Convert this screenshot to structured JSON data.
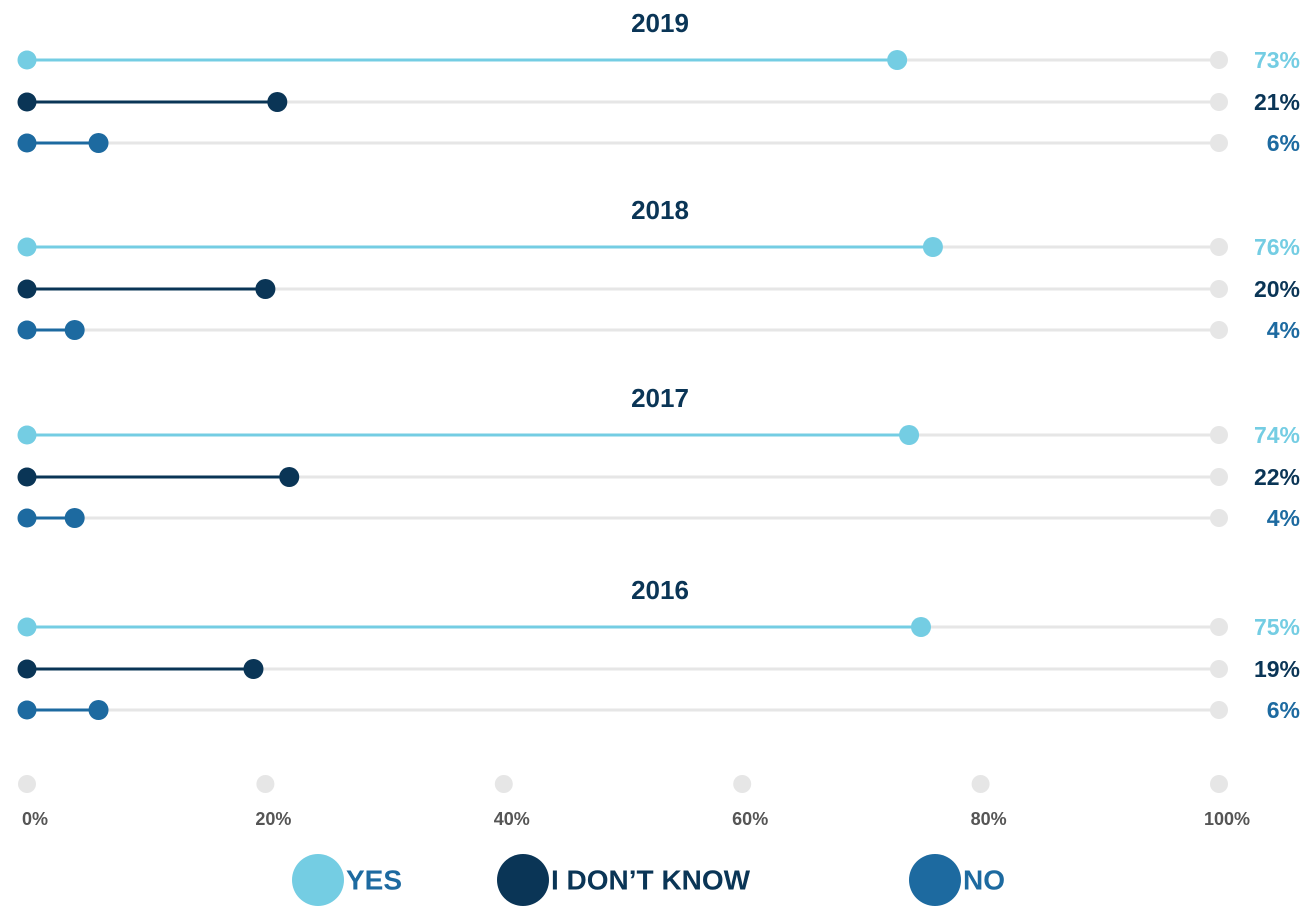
{
  "chart_data": {
    "type": "lollipop",
    "categories": [
      "2019",
      "2018",
      "2017",
      "2016"
    ],
    "series": [
      {
        "name": "YES",
        "color": "#74cde3",
        "values": [
          73,
          76,
          74,
          75
        ],
        "value_labels": [
          "73%",
          "76%",
          "74%",
          "75%"
        ]
      },
      {
        "name": "I DON’T KNOW",
        "color": "#0a3556",
        "values": [
          21,
          20,
          22,
          19
        ],
        "value_labels": [
          "21%",
          "20%",
          "22%",
          "19%"
        ]
      },
      {
        "name": "NO",
        "color": "#1d6aa0",
        "values": [
          6,
          4,
          4,
          6
        ],
        "value_labels": [
          "6%",
          "4%",
          "4%",
          "6%"
        ]
      }
    ],
    "xlim": [
      0,
      100
    ],
    "xticks": [
      {
        "value": 0,
        "label": "0%"
      },
      {
        "value": 20,
        "label": "20%"
      },
      {
        "value": 40,
        "label": "40%"
      },
      {
        "value": 60,
        "label": "60%"
      },
      {
        "value": 80,
        "label": "80%"
      },
      {
        "value": 100,
        "label": "100%"
      }
    ],
    "legend": "bottom"
  }
}
